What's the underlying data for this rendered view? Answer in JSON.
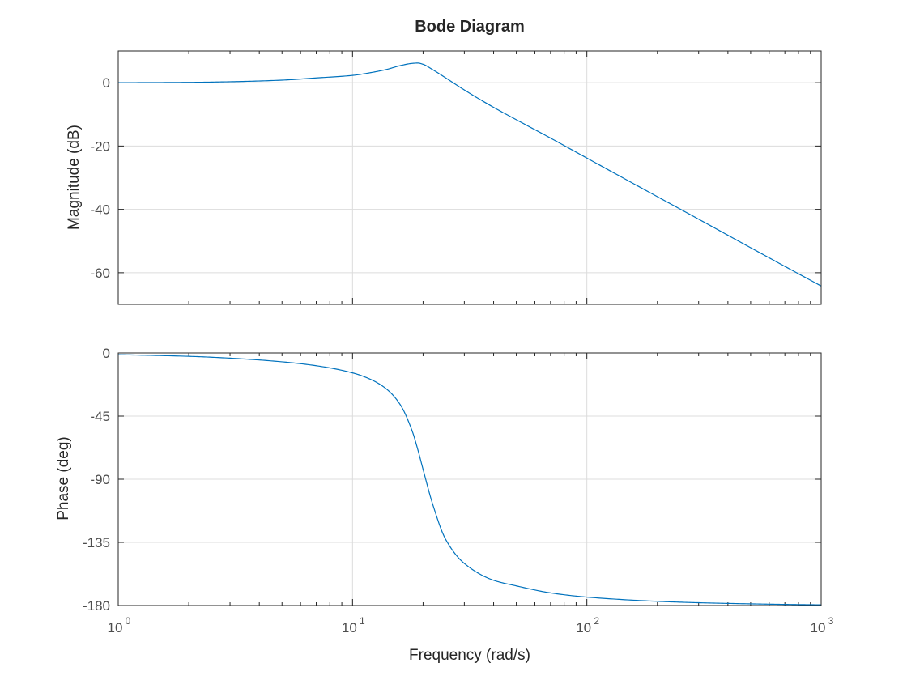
{
  "title": "Bode Diagram",
  "xlabel": "Frequency (rad/s)",
  "x_ticks": [
    {
      "value": 1,
      "base": "10",
      "exp": "0"
    },
    {
      "value": 10,
      "base": "10",
      "exp": "1"
    },
    {
      "value": 100,
      "base": "10",
      "exp": "2"
    },
    {
      "value": 1000,
      "base": "10",
      "exp": "3"
    }
  ],
  "colors": {
    "line": "#0072bd",
    "grid": "#dcdcdc",
    "axes": "#262626"
  },
  "chart_data": [
    {
      "type": "line",
      "ylabel": "Magnitude (dB)",
      "xscale": "log",
      "xlim": [
        1,
        1000
      ],
      "ylim": [
        -70,
        10
      ],
      "yticks": [
        0,
        -20,
        -40,
        -60
      ],
      "grid": true,
      "series": [
        {
          "x": [
            1,
            2,
            3,
            5,
            7,
            10,
            12,
            14,
            16,
            18,
            19,
            20,
            22,
            25,
            30,
            40,
            50,
            70,
            100,
            200,
            300,
            500,
            700,
            1000
          ],
          "y": [
            0.0,
            0.1,
            0.3,
            0.8,
            1.5,
            2.3,
            3.2,
            4.2,
            5.4,
            6.1,
            6.2,
            5.8,
            4.1,
            1.5,
            -2.3,
            -7.8,
            -11.7,
            -17.5,
            -23.8,
            -36.0,
            -43.1,
            -52.1,
            -58.0,
            -64.2
          ]
        }
      ]
    },
    {
      "type": "line",
      "ylabel": "Phase (deg)",
      "xscale": "log",
      "xlim": [
        1,
        1000
      ],
      "ylim": [
        -180,
        0
      ],
      "yticks": [
        0,
        -45,
        -90,
        -135,
        -180
      ],
      "grid": true,
      "series": [
        {
          "x": [
            1,
            2,
            3,
            5,
            7,
            10,
            12,
            14,
            16,
            18,
            19,
            20,
            22,
            25,
            30,
            40,
            50,
            70,
            100,
            200,
            300,
            500,
            700,
            1000
          ],
          "y": [
            -1.2,
            -2.4,
            -3.7,
            -6.3,
            -9.1,
            -14.2,
            -19.0,
            -25.9,
            -37.0,
            -56.0,
            -69.0,
            -83.0,
            -108.0,
            -133.0,
            -150.0,
            -162.0,
            -166.0,
            -171.0,
            -174.0,
            -177.0,
            -178.0,
            -178.8,
            -179.2,
            -179.5
          ]
        }
      ]
    }
  ]
}
